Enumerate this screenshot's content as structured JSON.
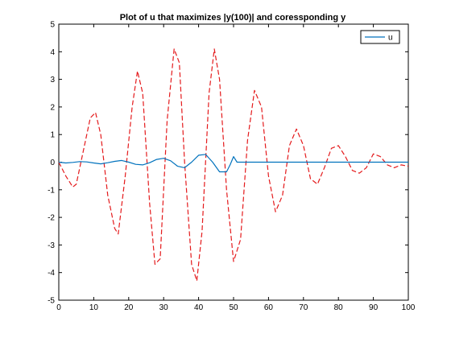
{
  "chart_data": {
    "type": "line",
    "title": "Plot of u that maximizes |y(100)| and coressponding y",
    "xlabel": "",
    "ylabel": "",
    "xlim": [
      0,
      100
    ],
    "ylim": [
      -5,
      5
    ],
    "xticks": [
      0,
      10,
      20,
      30,
      40,
      50,
      60,
      70,
      80,
      90,
      100
    ],
    "yticks": [
      -5,
      -4,
      -3,
      -2,
      -1,
      0,
      1,
      2,
      3,
      4,
      5
    ],
    "grid": false,
    "legend": {
      "position": "top-right",
      "entries": [
        "u"
      ]
    },
    "series": [
      {
        "name": "u",
        "color": "#0072BD",
        "style": "solid",
        "x": [
          0,
          2,
          4,
          6,
          8,
          10,
          12,
          14,
          16,
          18,
          20,
          22,
          24,
          26,
          28,
          30,
          32,
          34,
          36,
          38,
          40,
          42,
          44,
          46,
          48,
          49,
          50,
          51,
          52,
          60,
          70,
          80,
          90,
          100
        ],
        "y": [
          0,
          -0.03,
          -0.01,
          0.02,
          0.01,
          -0.03,
          -0.06,
          -0.02,
          0.03,
          0.06,
          0.0,
          -0.08,
          -0.1,
          -0.02,
          0.1,
          0.14,
          0.05,
          -0.15,
          -0.2,
          0.0,
          0.25,
          0.28,
          0.0,
          -0.35,
          -0.35,
          -0.1,
          0.2,
          0.0,
          0.0,
          0.0,
          0.0,
          0.0,
          0.0,
          0.0
        ]
      },
      {
        "color": "#E41A1C",
        "style": "dashed",
        "x": [
          0,
          2,
          4,
          5,
          7,
          9,
          10.5,
          12,
          14,
          16,
          17,
          19,
          21,
          22.5,
          24,
          26,
          27.5,
          29,
          31,
          33,
          34.5,
          36,
          38,
          39.5,
          41,
          43,
          44.5,
          46,
          48,
          50,
          52,
          54,
          56,
          58,
          60,
          62,
          64,
          66,
          68,
          70,
          72,
          74,
          76,
          78,
          80,
          82,
          84,
          86,
          88,
          90,
          92,
          94,
          96,
          98,
          100
        ],
        "y": [
          0,
          -0.5,
          -0.9,
          -0.8,
          0.4,
          1.6,
          1.8,
          1.0,
          -1.2,
          -2.4,
          -2.6,
          -0.5,
          2.0,
          3.3,
          2.5,
          -1.5,
          -3.7,
          -3.5,
          1.5,
          4.1,
          3.6,
          0.0,
          -3.7,
          -4.3,
          -2.5,
          2.5,
          4.1,
          3.0,
          -1.0,
          -3.6,
          -2.8,
          0.8,
          2.6,
          2.0,
          -0.5,
          -1.8,
          -1.2,
          0.6,
          1.2,
          0.6,
          -0.6,
          -0.8,
          -0.2,
          0.5,
          0.6,
          0.2,
          -0.3,
          -0.4,
          -0.2,
          0.3,
          0.2,
          -0.1,
          -0.2,
          -0.1,
          -0.15
        ]
      }
    ]
  }
}
